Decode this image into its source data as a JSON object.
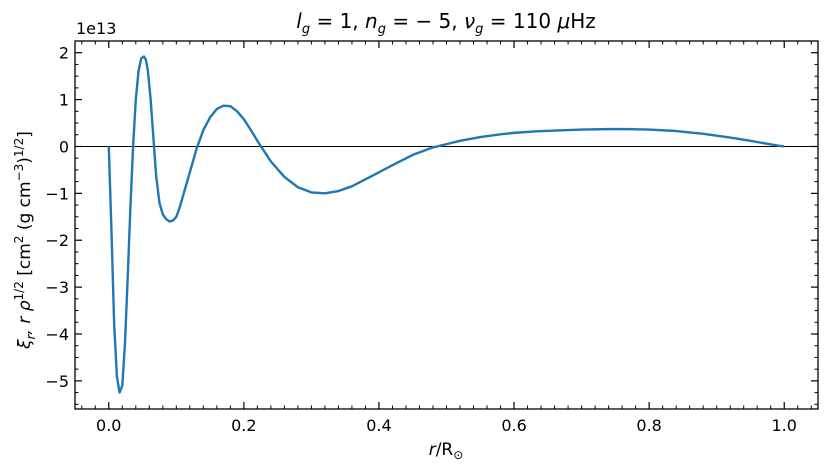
{
  "chart_data": {
    "type": "line",
    "title": "l_g = 1, n_g = −5, ν_g = 110 μHz",
    "title_parts": {
      "l": "l",
      "l_sub": "g",
      "l_val": " = 1, ",
      "n": "n",
      "n_sub": "g",
      "n_val": " = − 5, ",
      "nu": "ν",
      "nu_sub": "g",
      "nu_val": " = 110 ",
      "unit_mu": "μ",
      "unit": "Hz"
    },
    "xlabel": "r/R⊙",
    "xlabel_parts": {
      "r": "r",
      "slash": "/R",
      "sun": "⊙"
    },
    "ylabel": "ξr r ρ^1/2 [cm² (g cm⁻³)^1/2]",
    "ylabel_parts": {
      "xi": "ξ",
      "xi_sub": "r",
      "mid": ", r ρ",
      "sup1": "1/2",
      "bracket_open": " [cm",
      "sup2": "2",
      "paren": " (g cm",
      "sup3": "−3",
      "close": ")",
      "sup4": "1/2",
      "end": "]"
    },
    "y_offset_label": "1e13",
    "xlim": [
      -0.05,
      1.05
    ],
    "ylim": [
      -5.6,
      2.25
    ],
    "xticks": [
      0.0,
      0.2,
      0.4,
      0.6,
      0.8,
      1.0
    ],
    "xtick_labels": [
      "0.0",
      "0.2",
      "0.4",
      "0.6",
      "0.8",
      "1.0"
    ],
    "yticks": [
      -5,
      -4,
      -3,
      -2,
      -1,
      0,
      1,
      2
    ],
    "ytick_labels": [
      "−5",
      "−4",
      "−3",
      "−2",
      "−1",
      "0",
      "1",
      "2"
    ],
    "zero_line": true,
    "grid": false,
    "line_color": "#1f77b4",
    "series": [
      {
        "x": [
          0.0,
          0.004,
          0.008,
          0.012,
          0.016,
          0.02,
          0.024,
          0.028,
          0.032,
          0.036,
          0.04,
          0.044,
          0.048,
          0.052,
          0.055,
          0.058,
          0.062,
          0.066,
          0.07,
          0.075,
          0.08,
          0.085,
          0.09,
          0.095,
          0.1,
          0.105,
          0.11,
          0.12,
          0.13,
          0.14,
          0.15,
          0.16,
          0.17,
          0.18,
          0.19,
          0.2,
          0.21,
          0.22,
          0.23,
          0.24,
          0.26,
          0.28,
          0.3,
          0.32,
          0.34,
          0.36,
          0.38,
          0.4,
          0.42,
          0.45,
          0.48,
          0.5,
          0.52,
          0.55,
          0.58,
          0.6,
          0.63,
          0.66,
          0.7,
          0.74,
          0.77,
          0.8,
          0.84,
          0.88,
          0.92,
          0.95,
          0.97,
          0.99,
          1.0
        ],
        "y": [
          0.0,
          -1.8,
          -3.8,
          -4.9,
          -5.25,
          -5.1,
          -4.2,
          -2.8,
          -1.3,
          0.0,
          1.0,
          1.6,
          1.88,
          1.92,
          1.85,
          1.6,
          1.0,
          0.2,
          -0.6,
          -1.2,
          -1.45,
          -1.55,
          -1.6,
          -1.58,
          -1.5,
          -1.3,
          -1.05,
          -0.55,
          -0.05,
          0.35,
          0.62,
          0.8,
          0.87,
          0.86,
          0.75,
          0.58,
          0.36,
          0.12,
          -0.1,
          -0.32,
          -0.65,
          -0.87,
          -0.98,
          -1.0,
          -0.95,
          -0.85,
          -0.7,
          -0.55,
          -0.4,
          -0.18,
          -0.02,
          0.05,
          0.12,
          0.2,
          0.26,
          0.29,
          0.32,
          0.34,
          0.36,
          0.37,
          0.37,
          0.36,
          0.33,
          0.27,
          0.19,
          0.12,
          0.07,
          0.02,
          0.0
        ]
      }
    ]
  }
}
